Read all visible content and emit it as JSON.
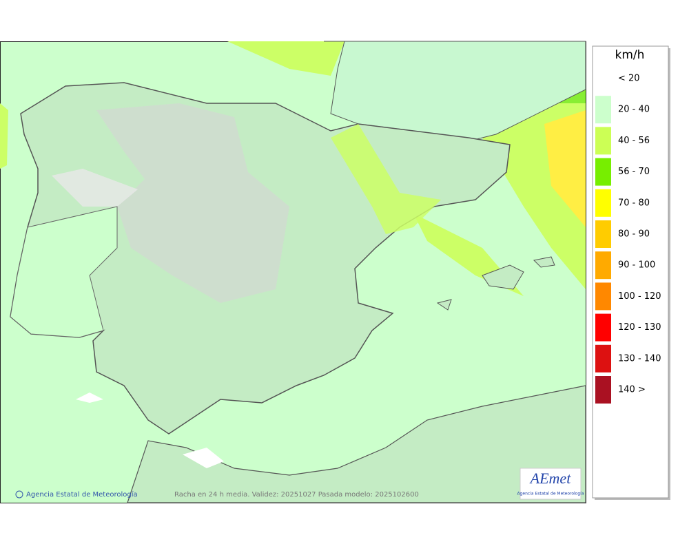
{
  "legend": {
    "title": "km/h",
    "items": [
      {
        "label": "< 20",
        "color": null
      },
      {
        "label": "20 - 40",
        "color": "#ccffcc"
      },
      {
        "label": "40 - 56",
        "color": "#ccff55"
      },
      {
        "label": "56 - 70",
        "color": "#77ee00"
      },
      {
        "label": "70 - 80",
        "color": "#ffff00"
      },
      {
        "label": "80 - 90",
        "color": "#ffcc00"
      },
      {
        "label": "90 - 100",
        "color": "#ffaa00"
      },
      {
        "label": "100 - 120",
        "color": "#ff8800"
      },
      {
        "label": "120 - 130",
        "color": "#ff0000"
      },
      {
        "label": "130 - 140",
        "color": "#dd1111"
      },
      {
        "label": "140 >",
        "color": "#aa1122"
      }
    ]
  },
  "footer": {
    "credit": "Agencia Estatal de Meteorología",
    "caption": "Racha en 24 h media. Validez: 20251027 Pasada modelo: 2025102600"
  },
  "logo": {
    "name": "AEmet",
    "subtitle": "Agencia Estatal de Meteorología"
  }
}
